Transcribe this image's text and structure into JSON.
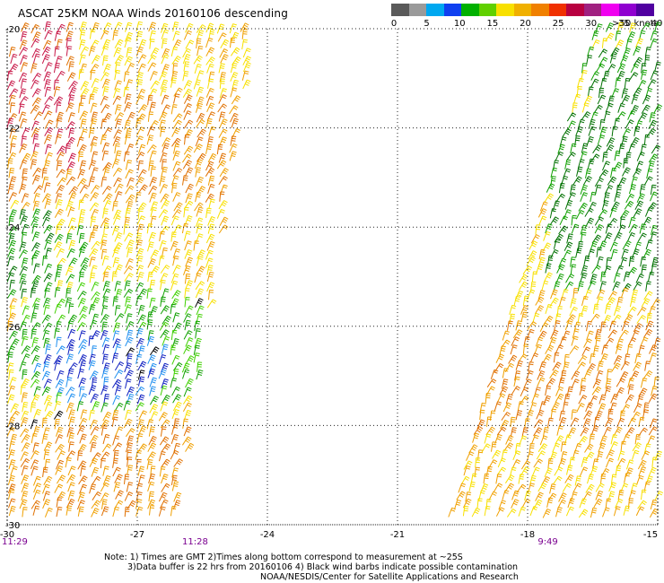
{
  "title": "ASCAT 25KM NOAA Winds 20160106 descending",
  "legend": {
    "unit_label": ">50 knots",
    "ticks": [
      "0",
      "5",
      "10",
      "15",
      "20",
      "25",
      "30",
      "35",
      "40",
      "45"
    ],
    "colors": [
      "#5a5a5a",
      "#9a9a9a",
      "#00a8f0",
      "#1040f0",
      "#00b000",
      "#60d000",
      "#f8e000",
      "#f0b000",
      "#f08000",
      "#f03000",
      "#b80040",
      "#a02080",
      "#f000f0",
      "#9000d0",
      "#5000a0"
    ]
  },
  "axes": {
    "lat_labels": [
      "-20",
      "-22",
      "-24",
      "-26",
      "-28",
      "-30"
    ],
    "lon_labels": [
      "-30",
      "-27",
      "-24",
      "-21",
      "-18",
      "-15"
    ]
  },
  "pass_times": [
    {
      "label": "11:29",
      "lon": -30
    },
    {
      "label": "11:28",
      "lon": -25.8
    },
    {
      "label": "9:49",
      "lon": -17.6
    }
  ],
  "wind_colors": {
    "yellow": "#f8e000",
    "orange": "#f0a000",
    "dark_orange": "#e07000",
    "red": "#c81848",
    "green": "#10a000",
    "dark_green": "#007000",
    "bright_green": "#40d000",
    "blue": "#1020c0",
    "light_blue": "#2090f0",
    "black": "#000000"
  },
  "notes": {
    "line1": "Note: 1) Times are GMT 2)Times along bottom correspond to measurement at ~25S",
    "line2": "3)Data buffer is 22 hrs from 20160106 4) Black wind barbs indicate possible contamination",
    "line3": "NOAA/NESDIS/Center for Satellite Applications and Research"
  }
}
